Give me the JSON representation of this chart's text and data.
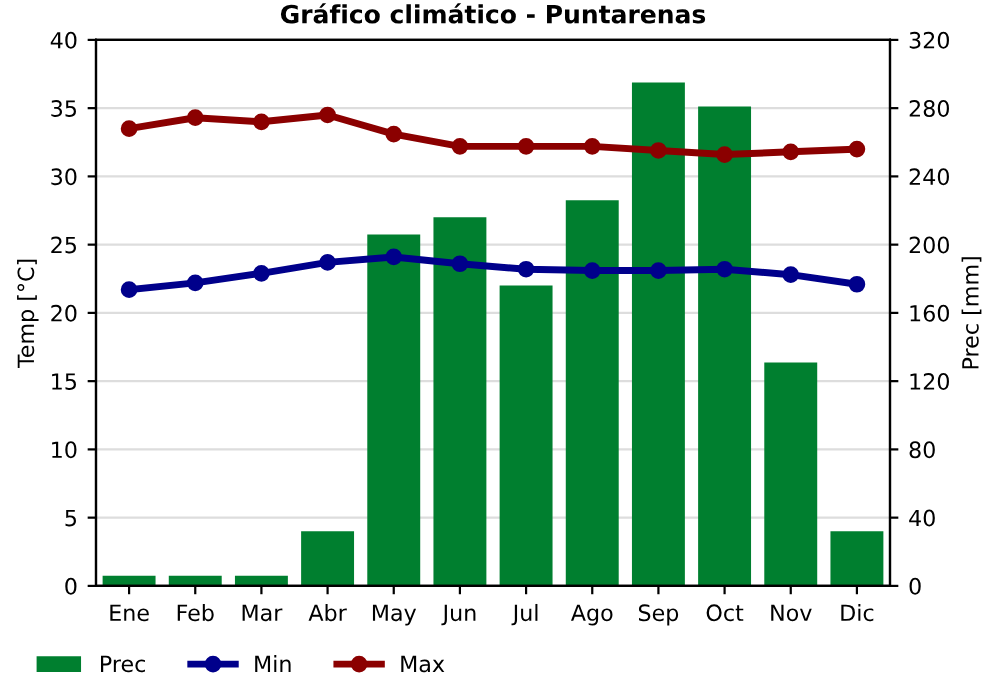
{
  "chart_data": {
    "type": "line",
    "title": "Gráfico climático - Puntarenas",
    "ylabel": "Temp [°C]",
    "y2label": "Prec [mm]",
    "categories": [
      "Ene",
      "Feb",
      "Mar",
      "Abr",
      "May",
      "Jun",
      "Jul",
      "Ago",
      "Sep",
      "Oct",
      "Nov",
      "Dic"
    ],
    "series": [
      {
        "name": "Prec",
        "type": "bar",
        "axis": "y2",
        "color": "#007f2f",
        "values": [
          6,
          6,
          6,
          32,
          206,
          216,
          176,
          226,
          295,
          281,
          131,
          32
        ]
      },
      {
        "name": "Min",
        "color": "#00008b",
        "values": [
          21.7,
          22.2,
          22.9,
          23.7,
          24.1,
          23.6,
          23.2,
          23.1,
          23.1,
          23.2,
          22.8,
          22.1
        ]
      },
      {
        "name": "Max",
        "color": "#8b0000",
        "values": [
          33.5,
          34.3,
          34.0,
          34.5,
          33.1,
          32.2,
          32.2,
          32.2,
          31.9,
          31.6,
          31.8,
          32.0
        ]
      }
    ],
    "ylim": [
      0,
      40
    ],
    "yticks": [
      0,
      5,
      10,
      15,
      20,
      25,
      30,
      35,
      40
    ],
    "y2lim": [
      0,
      320
    ],
    "y2ticks": [
      0,
      40,
      80,
      120,
      160,
      200,
      240,
      280,
      320
    ],
    "grid": true,
    "legend": "bottom left",
    "marker": "circle",
    "line_style": "solid"
  }
}
